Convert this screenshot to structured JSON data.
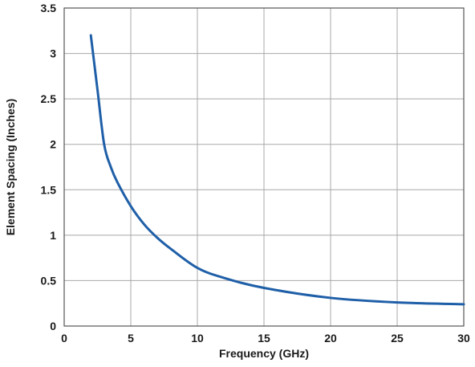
{
  "chart_data": {
    "type": "line",
    "title": "",
    "xlabel": "Frequency (GHz)",
    "ylabel": "Element Spacing (Inches)",
    "xlim": [
      0,
      30
    ],
    "ylim": [
      0,
      3.5
    ],
    "x_ticks": [
      0,
      5,
      10,
      15,
      20,
      25,
      30
    ],
    "x_tick_labels": [
      "0",
      "5",
      "10",
      "15",
      "20",
      "25",
      "30"
    ],
    "y_ticks": [
      0,
      0.5,
      1,
      1.5,
      2,
      2.5,
      3,
      3.5
    ],
    "y_tick_labels": [
      "0",
      "0.5",
      "1",
      "1.5",
      "2",
      "2.5",
      "3",
      "3.5"
    ],
    "grid": true,
    "legend": "none",
    "series": [
      {
        "color": "#1f5fa8",
        "x": [
          2,
          2.5,
          3,
          3.5,
          4,
          5,
          6,
          7,
          8,
          10,
          12,
          15,
          20,
          25,
          30
        ],
        "y": [
          3.2,
          2.6,
          2.0,
          1.75,
          1.58,
          1.32,
          1.12,
          0.97,
          0.85,
          0.64,
          0.53,
          0.42,
          0.31,
          0.26,
          0.24
        ]
      }
    ]
  }
}
